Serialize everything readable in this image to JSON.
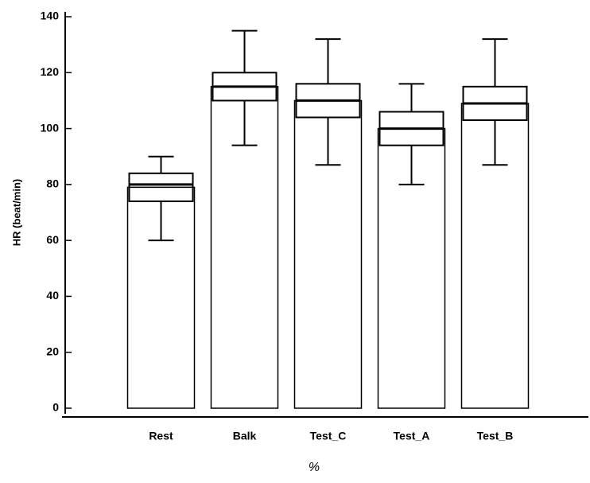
{
  "chart_data": {
    "type": "box",
    "ylabel": "HR (beat/min)",
    "xlabel": "%",
    "categories": [
      "Rest",
      "Balk",
      "Test_C",
      "Test_A",
      "Test_B"
    ],
    "means": [
      79,
      115,
      110,
      100,
      109
    ],
    "q1": [
      74,
      110,
      104,
      94,
      103
    ],
    "median": [
      80,
      115,
      110,
      100,
      109
    ],
    "q3": [
      84,
      120,
      116,
      106,
      115
    ],
    "whisker_low": [
      60,
      94,
      87,
      80,
      87
    ],
    "whisker_high": [
      90,
      135,
      132,
      116,
      132
    ],
    "ylim": [
      0,
      140
    ],
    "yticks": [
      0,
      20,
      40,
      60,
      80,
      100,
      120,
      140
    ],
    "color": "#ffffff",
    "edge_color": "#000000"
  }
}
